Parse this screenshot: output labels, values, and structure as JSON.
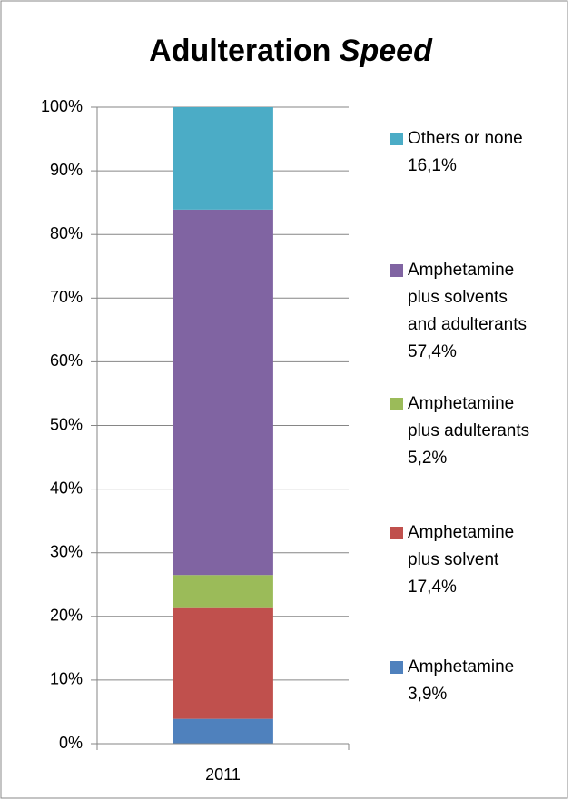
{
  "chart_data": {
    "type": "stacked_bar",
    "title": "Adulteration",
    "title_italic": "Speed",
    "categories": [
      "2011"
    ],
    "series": [
      {
        "name": "Amphetamine",
        "color": "#4f81bd",
        "values": [
          3.9
        ],
        "value_labels": [
          "3,9%"
        ]
      },
      {
        "name": "Amphetamine plus solvent",
        "color": "#c0504d",
        "values": [
          17.4
        ],
        "value_labels": [
          "17,4%"
        ]
      },
      {
        "name": "Amphetamine plus adulterants",
        "color": "#9bbb59",
        "values": [
          5.2
        ],
        "value_labels": [
          "5,2%"
        ]
      },
      {
        "name": "Amphetamine plus solvents and adulterants",
        "color": "#8064a2",
        "values": [
          57.4
        ],
        "value_labels": [
          "57,4%"
        ]
      },
      {
        "name": "Others or none",
        "color": "#4bacc6",
        "values": [
          16.1
        ],
        "value_labels": [
          "16,1%"
        ]
      }
    ],
    "ylim": [
      0,
      100
    ],
    "yticks": [
      {
        "value": 0,
        "label": "0%"
      },
      {
        "value": 10,
        "label": "10%"
      },
      {
        "value": 20,
        "label": "20%"
      },
      {
        "value": 30,
        "label": "30%"
      },
      {
        "value": 40,
        "label": "40%"
      },
      {
        "value": 50,
        "label": "50%"
      },
      {
        "value": 60,
        "label": "60%"
      },
      {
        "value": 70,
        "label": "70%"
      },
      {
        "value": 80,
        "label": "80%"
      },
      {
        "value": 90,
        "label": "90%"
      },
      {
        "value": 100,
        "label": "100%"
      }
    ],
    "grid": true,
    "legend": "right"
  }
}
